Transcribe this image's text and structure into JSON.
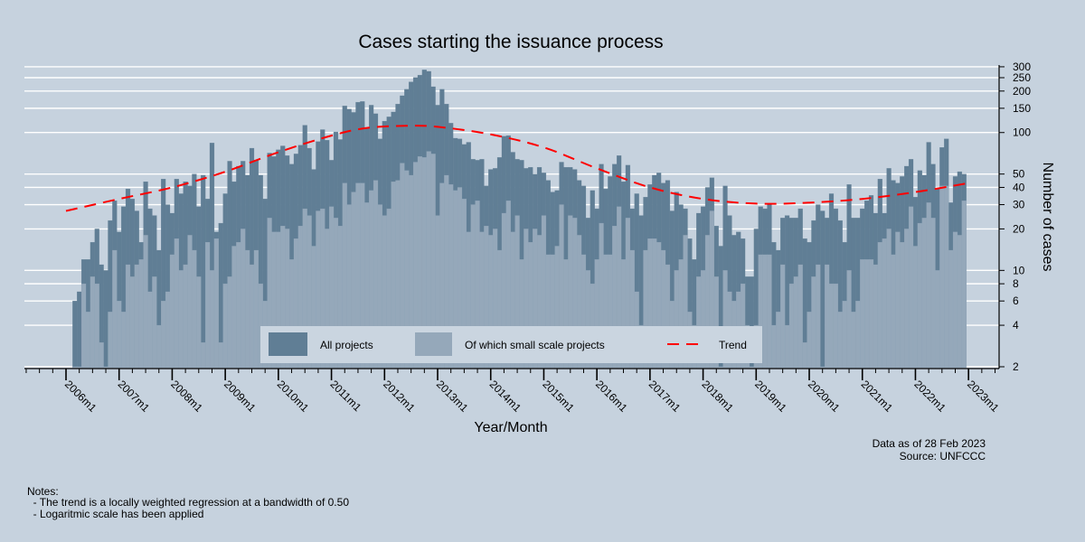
{
  "chart_data": {
    "type": "bar",
    "title": "Cases starting the issuance process",
    "xlabel": "Year/Month",
    "ylabel": "Number of cases",
    "y_scale": "log",
    "ylim": [
      2,
      300
    ],
    "grid": true,
    "legend_placement": "bottom-center inside",
    "y_ticks": [
      300,
      250,
      200,
      150,
      100,
      50,
      40,
      30,
      20,
      10,
      8,
      6,
      4,
      2
    ],
    "x_ticks": [
      "2006m1",
      "2007m1",
      "2008m1",
      "2009m1",
      "2010m1",
      "2011m1",
      "2012m1",
      "2013m1",
      "2014m1",
      "2015m1",
      "2016m1",
      "2017m1",
      "2018m1",
      "2019m1",
      "2020m1",
      "2021m1",
      "2022m1",
      "2023m1"
    ],
    "x_start": "2006m3",
    "colors": {
      "all": "#607e95",
      "small": "#95a8ba",
      "trend": "#ff0000",
      "background": "#c6d2de"
    },
    "series": [
      {
        "name": "All projects",
        "values": [
          6,
          7,
          12,
          12,
          16,
          20,
          11,
          10,
          23,
          32,
          19,
          29,
          39,
          33,
          27,
          16,
          44,
          28,
          25,
          14,
          46,
          30,
          26,
          46,
          36,
          44,
          41,
          50,
          29,
          49,
          33,
          84,
          19,
          22,
          36,
          62,
          44,
          57,
          62,
          49,
          77,
          63,
          49,
          33,
          71,
          67,
          75,
          80,
          68,
          59,
          70,
          81,
          113,
          77,
          54,
          86,
          105,
          88,
          63,
          101,
          89,
          156,
          148,
          140,
          166,
          168,
          107,
          158,
          137,
          90,
          121,
          130,
          141,
          161,
          185,
          206,
          233,
          251,
          261,
          285,
          278,
          215,
          158,
          206,
          161,
          117,
          91,
          90,
          82,
          85,
          64,
          63,
          64,
          41,
          54,
          55,
          66,
          94,
          95,
          72,
          64,
          63,
          55,
          56,
          50,
          56,
          51,
          45,
          37,
          38,
          61,
          56,
          56,
          54,
          45,
          41,
          24,
          38,
          28,
          59,
          39,
          48,
          59,
          68,
          44,
          58,
          28,
          36,
          25,
          34,
          42,
          49,
          51,
          43,
          45,
          27,
          37,
          30,
          28,
          17,
          12,
          26,
          29,
          40,
          47,
          21,
          15,
          41,
          25,
          18,
          19,
          17,
          9,
          9,
          20,
          29,
          28,
          30,
          16,
          14,
          24,
          25,
          24,
          24,
          28,
          17,
          16,
          23,
          30,
          27,
          24,
          36,
          28,
          23,
          16,
          42,
          24,
          24,
          28,
          32,
          35,
          26,
          46,
          26,
          55,
          45,
          43,
          48,
          57,
          64,
          34,
          53,
          49,
          85,
          59,
          39,
          78,
          90,
          31,
          48,
          52,
          50
        ]
      },
      {
        "name": "Of which small scale projects",
        "values": [
          2,
          2,
          8,
          5,
          9,
          8,
          3,
          2,
          5,
          14,
          6,
          5,
          11,
          9,
          11,
          12,
          18,
          7,
          9,
          4,
          6,
          7,
          13,
          17,
          10,
          11,
          18,
          14,
          9,
          3,
          16,
          10,
          17,
          3,
          8,
          9,
          15,
          16,
          20,
          14,
          11,
          14,
          8,
          6,
          24,
          19,
          19,
          21,
          20,
          12,
          17,
          21,
          28,
          25,
          15,
          27,
          28,
          20,
          29,
          24,
          21,
          43,
          30,
          37,
          43,
          43,
          31,
          38,
          45,
          30,
          25,
          28,
          44,
          45,
          60,
          53,
          49,
          61,
          67,
          66,
          73,
          70,
          25,
          43,
          49,
          42,
          38,
          40,
          33,
          19,
          30,
          32,
          19,
          21,
          18,
          20,
          14,
          26,
          32,
          19,
          25,
          12,
          20,
          16,
          20,
          18,
          25,
          13,
          13,
          15,
          30,
          12,
          25,
          24,
          18,
          13,
          10,
          8,
          12,
          22,
          13,
          13,
          21,
          29,
          12,
          24,
          14,
          7,
          4,
          14,
          17,
          17,
          16,
          14,
          11,
          6,
          10,
          12,
          18,
          5,
          4,
          9,
          10,
          18,
          27,
          9,
          2,
          10,
          7,
          6,
          7,
          8,
          4,
          2,
          4,
          13,
          13,
          13,
          4,
          5,
          11,
          4,
          8,
          9,
          11,
          3,
          5,
          9,
          11,
          2,
          11,
          8,
          8,
          5,
          6,
          10,
          5,
          6,
          12,
          12,
          12,
          11,
          16,
          17,
          20,
          13,
          19,
          16,
          20,
          29,
          15,
          22,
          24,
          31,
          24,
          10,
          41,
          41,
          14,
          19,
          18,
          32
        ]
      }
    ],
    "trend": {
      "name": "Trend",
      "x": [
        "2006m1",
        "2007m1",
        "2008m1",
        "2009m1",
        "2010m1",
        "2011m1",
        "2011m9",
        "2012m6",
        "2013m1",
        "2014m1",
        "2015m1",
        "2016m1",
        "2017m1",
        "2018m1",
        "2019m1",
        "2020m1",
        "2021m1",
        "2022m1",
        "2023m1"
      ],
      "y": [
        27,
        33,
        40,
        52,
        72,
        95,
        108,
        112,
        110,
        97,
        78,
        55,
        40,
        33,
        30.5,
        31,
        33,
        37,
        43
      ]
    }
  },
  "legend": {
    "all": "All projects",
    "small": "Of which small scale projects",
    "trend": "Trend"
  },
  "footer": {
    "data_as_of": "Data as of 28 Feb 2023",
    "source": "Source: UNFCCC"
  },
  "notes": {
    "heading": "Notes:",
    "lines": [
      "  - The trend is a locally weighted regression at a bandwidth of 0.50",
      "  - Logaritmic scale has been applied"
    ]
  }
}
